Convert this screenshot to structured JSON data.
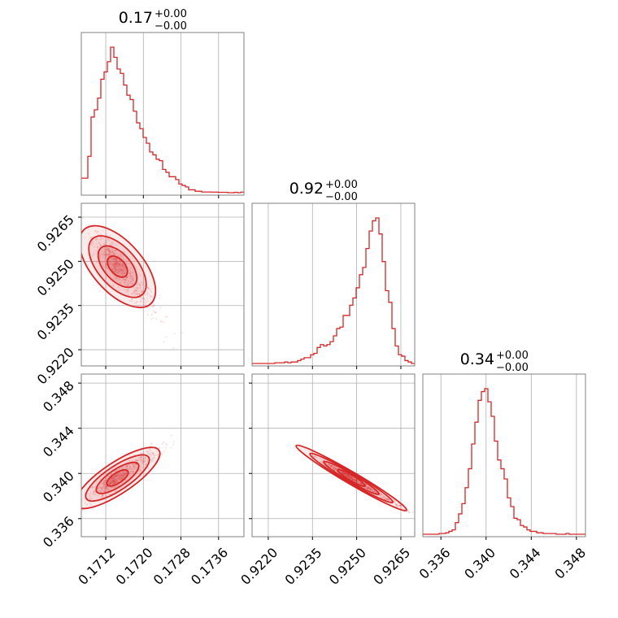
{
  "colors": {
    "series": "#d62728",
    "fill": "#f4b4b4",
    "grid": "#b0b0b0",
    "frame": "#808080"
  },
  "chart_data": {
    "type": "corner",
    "parameters": [
      {
        "title_value": "0.17",
        "title_upper": "+0.00",
        "title_lower": "−0.00",
        "range": [
          0.17068,
          0.17414
        ],
        "ticks": [
          0.1712,
          0.172,
          0.1728,
          0.1736
        ],
        "tick_labels": [
          "0.1712",
          "0.1720",
          "0.1728",
          "0.1736"
        ]
      },
      {
        "title_value": "0.92",
        "title_upper": "+0.00",
        "title_lower": "−0.00",
        "range": [
          0.92145,
          0.92697
        ],
        "ticks": [
          0.922,
          0.9235,
          0.925,
          0.9265
        ],
        "tick_labels": [
          "0.9220",
          "0.9235",
          "0.9250",
          "0.9265"
        ]
      },
      {
        "title_value": "0.34",
        "title_upper": "+0.00",
        "title_lower": "−0.00",
        "range": [
          0.3344,
          0.3488
        ],
        "ticks": [
          0.336,
          0.34,
          0.344,
          0.348
        ],
        "tick_labels": [
          "0.336",
          "0.340",
          "0.344",
          "0.348"
        ]
      }
    ],
    "histograms": [
      {
        "edges": [
          0.17068,
          0.17414
        ],
        "counts": [
          0.1,
          0.1,
          0.25,
          0.52,
          0.57,
          0.65,
          0.78,
          0.83,
          0.9,
          1.0,
          0.93,
          0.85,
          0.82,
          0.74,
          0.67,
          0.64,
          0.56,
          0.48,
          0.44,
          0.38,
          0.34,
          0.28,
          0.26,
          0.23,
          0.22,
          0.16,
          0.14,
          0.11,
          0.11,
          0.09,
          0.06,
          0.05,
          0.04,
          0.02,
          0.02,
          0.01,
          0.01,
          0.005,
          0.005,
          0.005,
          0.004,
          0.004,
          0.003,
          0.003,
          0.003,
          0.0,
          0.0,
          0.003,
          0.0,
          0.004
        ]
      },
      {
        "edges": [
          0.92145,
          0.92697
        ],
        "counts": [
          0.0,
          0.0,
          0.0,
          0.0,
          0.0,
          0.0,
          0.0,
          0.005,
          0.005,
          0.005,
          0.01,
          0.005,
          0.01,
          0.01,
          0.02,
          0.03,
          0.04,
          0.04,
          0.06,
          0.07,
          0.11,
          0.13,
          0.12,
          0.13,
          0.15,
          0.19,
          0.24,
          0.25,
          0.33,
          0.33,
          0.4,
          0.45,
          0.52,
          0.61,
          0.66,
          0.79,
          0.91,
          0.98,
          1.0,
          0.89,
          0.7,
          0.5,
          0.42,
          0.24,
          0.12,
          0.06,
          0.05,
          0.02,
          0.01,
          0.0
        ]
      },
      {
        "edges": [
          0.3344,
          0.3488
        ],
        "counts": [
          0.0,
          0.0,
          0.0,
          0.0,
          0.0,
          0.005,
          0.005,
          0.01,
          0.02,
          0.03,
          0.08,
          0.14,
          0.21,
          0.32,
          0.45,
          0.62,
          0.77,
          0.92,
          0.98,
          1.0,
          0.91,
          0.81,
          0.64,
          0.51,
          0.45,
          0.38,
          0.25,
          0.19,
          0.11,
          0.1,
          0.06,
          0.05,
          0.03,
          0.02,
          0.02,
          0.01,
          0.01,
          0.005,
          0.005,
          0.005,
          0.005,
          0.0,
          0.0,
          0.0,
          0.005,
          0.0,
          0.0,
          0.0,
          0.0,
          0.0
        ]
      }
    ],
    "sample_summary": {
      "mean": [
        0.17145,
        0.92482,
        0.3396
      ],
      "sd": [
        0.00035,
        0.0007,
        0.00108
      ],
      "correlation_01": -0.9,
      "correlation_02": 0.9,
      "correlation_12": -0.99
    },
    "grid": true,
    "contour_levels": [
      "0.5 sigma",
      "1 sigma",
      "1.5 sigma",
      "2 sigma"
    ]
  }
}
